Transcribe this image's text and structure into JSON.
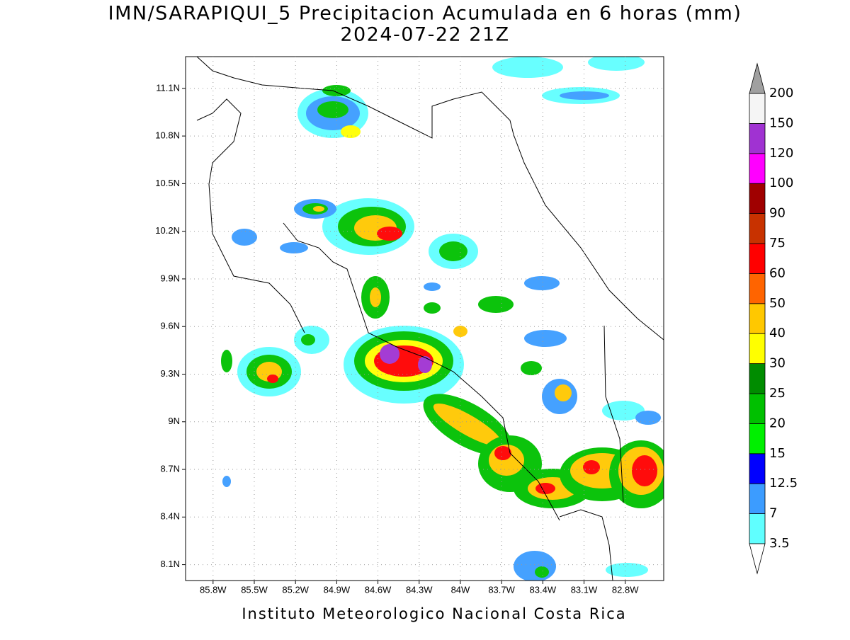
{
  "title": "IMN/SARAPIQUI_5 Precipitacion Acumulada en 6 horas (mm)",
  "subtitle": "2024-07-22 21Z",
  "map": {
    "xlim": [
      -86.0,
      -82.52
    ],
    "ylim": [
      8.0,
      11.3
    ],
    "grid": true,
    "xticks": [
      {
        "value": -85.8,
        "label": "85.8W"
      },
      {
        "value": -85.5,
        "label": "85.5W"
      },
      {
        "value": -85.2,
        "label": "85.2W"
      },
      {
        "value": -84.9,
        "label": "84.9W"
      },
      {
        "value": -84.6,
        "label": "84.6W"
      },
      {
        "value": -84.3,
        "label": "84.3W"
      },
      {
        "value": -84.0,
        "label": "84W"
      },
      {
        "value": -83.7,
        "label": "83.7W"
      },
      {
        "value": -83.4,
        "label": "83.4W"
      },
      {
        "value": -83.1,
        "label": "83.1W"
      },
      {
        "value": -82.8,
        "label": "82.8W"
      }
    ],
    "yticks": [
      {
        "value": 8.1,
        "label": "8.1N"
      },
      {
        "value": 8.4,
        "label": "8.4N"
      },
      {
        "value": 8.7,
        "label": "8.7N"
      },
      {
        "value": 9.0,
        "label": "9N"
      },
      {
        "value": 9.3,
        "label": "9.3N"
      },
      {
        "value": 9.6,
        "label": "9.6N"
      },
      {
        "value": 9.9,
        "label": "9.9N"
      },
      {
        "value": 10.2,
        "label": "10.2N"
      },
      {
        "value": 10.5,
        "label": "10.5N"
      },
      {
        "value": 10.8,
        "label": "10.8N"
      },
      {
        "value": 11.1,
        "label": "11.1N"
      }
    ]
  },
  "colorbar": {
    "levels": [
      3.5,
      7,
      12.5,
      15,
      20,
      25,
      30,
      40,
      50,
      60,
      75,
      90,
      100,
      120,
      150,
      200
    ],
    "colors": [
      "#60ffff",
      "#3c9cff",
      "#0000ff",
      "#00f000",
      "#00c000",
      "#008c00",
      "#ffff00",
      "#ffc800",
      "#ff6400",
      "#ff0000",
      "#c83200",
      "#a00000",
      "#ff00ff",
      "#a032d2",
      "#f5f5f5"
    ],
    "under_color": "#ffffff",
    "over_color": "#a0a0a0"
  },
  "footer": "Instituto Meteorologico Nacional Costa Rica"
}
